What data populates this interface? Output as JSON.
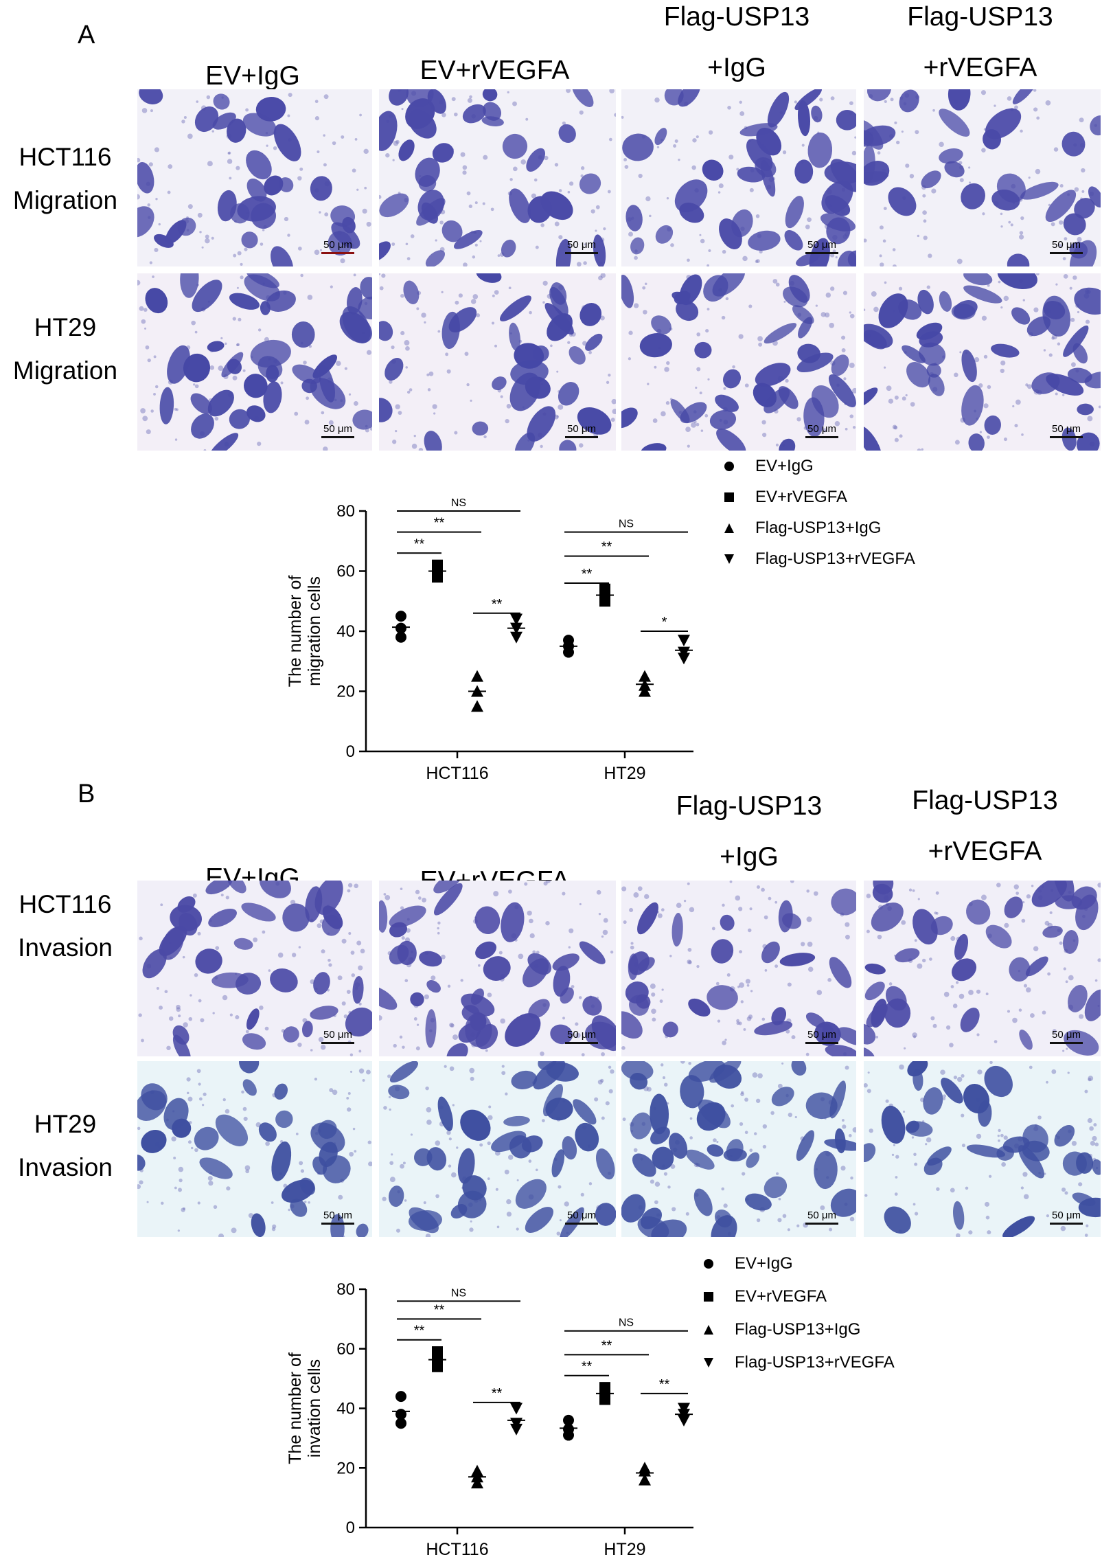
{
  "panels": [
    {
      "letter": "A",
      "columns": [
        {
          "line1": "",
          "line2": "EV+IgG"
        },
        {
          "line1": "",
          "line2": "EV+rVEGFA"
        },
        {
          "line1": "Flag-USP13",
          "line2": "+IgG"
        },
        {
          "line1": "Flag-USP13",
          "line2": "+rVEGFA"
        }
      ],
      "rows": [
        {
          "line1": "HCT116",
          "line2": "Migration",
          "tint": "#f2f1f8",
          "cell": "#4a4aa8"
        },
        {
          "line1": "HT29",
          "line2": "Migration",
          "tint": "#f3eff7",
          "cell": "#4648a6"
        }
      ],
      "scale_label": "50 μm"
    },
    {
      "letter": "B",
      "columns": [
        {
          "line1": "",
          "line2": "EV+IgG"
        },
        {
          "line1": "",
          "line2": "EV+rVEGFA"
        },
        {
          "line1": "Flag-USP13",
          "line2": "+IgG"
        },
        {
          "line1": "Flag-USP13",
          "line2": "+rVEGFA"
        }
      ],
      "rows": [
        {
          "line1": "HCT116",
          "line2": "Invasion",
          "tint": "#f1eff8",
          "cell": "#4b4aa6"
        },
        {
          "line1": "HT29",
          "line2": "Invasion",
          "tint": "#eaf4f8",
          "cell": "#3e4fa0"
        }
      ],
      "scale_label": "50 μm"
    }
  ],
  "legend": [
    "EV+IgG",
    "EV+rVEGFA",
    "Flag-USP13+IgG",
    "Flag-USP13+rVEGFA"
  ],
  "chart_data": [
    {
      "type": "scatter",
      "ylabel_line1": "The number of",
      "ylabel_line2": "migration cells",
      "ylim": [
        0,
        80
      ],
      "yticks": [
        0,
        20,
        40,
        60,
        80
      ],
      "categories": [
        "HCT116",
        "HT29"
      ],
      "series": [
        {
          "name": "EV+IgG",
          "marker": "circle",
          "values": [
            [
              38,
              41,
              45
            ],
            [
              33,
              35,
              37
            ]
          ]
        },
        {
          "name": "EV+rVEGFA",
          "marker": "square",
          "values": [
            [
              58,
              60,
              62
            ],
            [
              50,
              52,
              54
            ]
          ]
        },
        {
          "name": "Flag-USP13+IgG",
          "marker": "triangle-up",
          "values": [
            [
              15,
              20,
              25
            ],
            [
              20,
              22,
              25
            ]
          ]
        },
        {
          "name": "Flag-USP13+rVEGFA",
          "marker": "triangle-down",
          "values": [
            [
              38,
              41,
              44
            ],
            [
              31,
              33,
              37
            ]
          ]
        }
      ],
      "annotations": [
        {
          "group": 0,
          "from": 0,
          "to": 1,
          "label": "**",
          "y": 66
        },
        {
          "group": 0,
          "from": 0,
          "to": 2,
          "label": "**",
          "y": 73
        },
        {
          "group": 0,
          "from": 0,
          "to": 3,
          "label": "NS",
          "y": 80
        },
        {
          "group": 0,
          "from": 2,
          "to": 3,
          "label": "**",
          "y": 46
        },
        {
          "group": 1,
          "from": 0,
          "to": 1,
          "label": "**",
          "y": 56
        },
        {
          "group": 1,
          "from": 0,
          "to": 2,
          "label": "**",
          "y": 65
        },
        {
          "group": 1,
          "from": 0,
          "to": 3,
          "label": "NS",
          "y": 73
        },
        {
          "group": 1,
          "from": 2,
          "to": 3,
          "label": "*",
          "y": 40
        }
      ]
    },
    {
      "type": "scatter",
      "ylabel_line1": "The number of",
      "ylabel_line2": "invation cells",
      "ylim": [
        0,
        80
      ],
      "yticks": [
        0,
        20,
        40,
        60,
        80
      ],
      "categories": [
        "HCT116",
        "HT29"
      ],
      "series": [
        {
          "name": "EV+IgG",
          "marker": "circle",
          "values": [
            [
              35,
              38,
              44
            ],
            [
              31,
              33,
              36
            ]
          ]
        },
        {
          "name": "EV+rVEGFA",
          "marker": "square",
          "values": [
            [
              54,
              56,
              59
            ],
            [
              43,
              45,
              47
            ]
          ]
        },
        {
          "name": "Flag-USP13+IgG",
          "marker": "triangle-up",
          "values": [
            [
              15,
              17,
              19
            ],
            [
              16,
              19,
              20
            ]
          ]
        },
        {
          "name": "Flag-USP13+rVEGFA",
          "marker": "triangle-down",
          "values": [
            [
              33,
              35,
              40
            ],
            [
              36,
              38,
              40
            ]
          ]
        }
      ],
      "annotations": [
        {
          "group": 0,
          "from": 0,
          "to": 1,
          "label": "**",
          "y": 63
        },
        {
          "group": 0,
          "from": 0,
          "to": 2,
          "label": "**",
          "y": 70
        },
        {
          "group": 0,
          "from": 0,
          "to": 3,
          "label": "NS",
          "y": 76
        },
        {
          "group": 0,
          "from": 2,
          "to": 3,
          "label": "**",
          "y": 42
        },
        {
          "group": 1,
          "from": 0,
          "to": 1,
          "label": "**",
          "y": 51
        },
        {
          "group": 1,
          "from": 0,
          "to": 2,
          "label": "**",
          "y": 58
        },
        {
          "group": 1,
          "from": 0,
          "to": 3,
          "label": "NS",
          "y": 66
        },
        {
          "group": 1,
          "from": 2,
          "to": 3,
          "label": "**",
          "y": 45
        }
      ]
    }
  ]
}
